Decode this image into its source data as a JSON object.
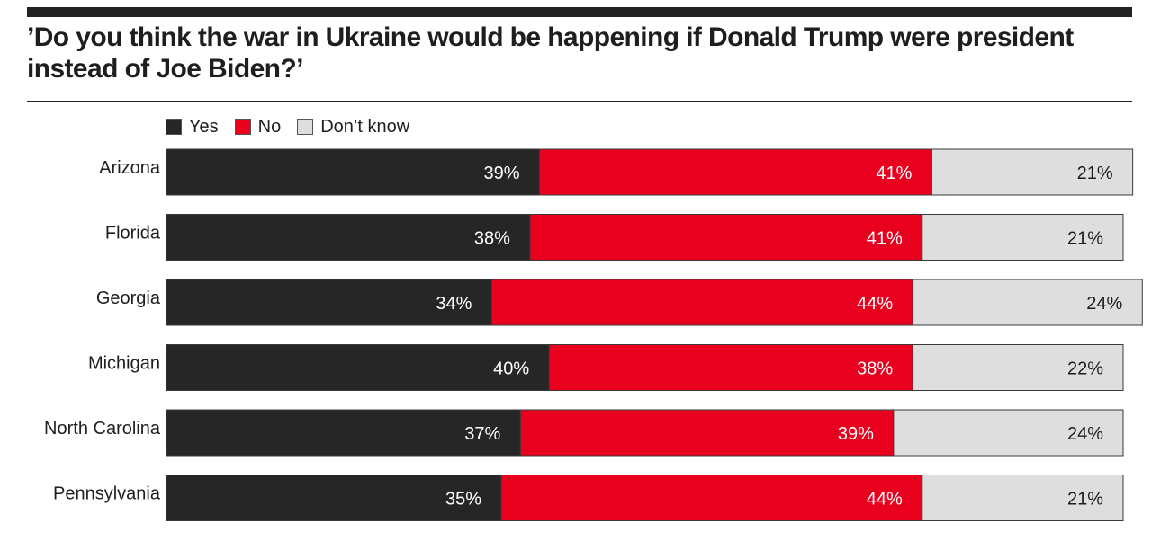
{
  "title": "’Do you think the war in Ukraine would be happening if Donald Trump were president instead of Joe Biden?’",
  "legend": [
    {
      "label": "Yes",
      "color": "#262626"
    },
    {
      "label": "No",
      "color": "#e8001e"
    },
    {
      "label": "Don’t know",
      "color": "#dedede"
    }
  ],
  "chart_data": {
    "type": "bar",
    "orientation": "horizontal",
    "stacked": true,
    "categories": [
      "Arizona",
      "Florida",
      "Georgia",
      "Michigan",
      "North Carolina",
      "Pennsylvania"
    ],
    "series": [
      {
        "name": "Yes",
        "values": [
          39,
          38,
          34,
          40,
          37,
          35
        ],
        "labels": [
          "39%",
          "38%",
          "34%",
          "40%",
          "37%",
          "35%"
        ]
      },
      {
        "name": "No",
        "values": [
          41,
          41,
          44,
          38,
          39,
          44
        ],
        "labels": [
          "41%",
          "41%",
          "44%",
          "38%",
          "39%",
          "44%"
        ]
      },
      {
        "name": "Don’t know",
        "values": [
          21,
          21,
          24,
          22,
          24,
          21
        ],
        "labels": [
          "21%",
          "21%",
          "24%",
          "22%",
          "24%",
          "21%"
        ]
      }
    ],
    "title": "’Do you think the war in Ukraine would be happening if Donald Trump were president instead of Joe Biden?’",
    "xlabel": "",
    "ylabel": "",
    "xlim": [
      0,
      100
    ],
    "grid": false,
    "legend_position": "top-left"
  }
}
